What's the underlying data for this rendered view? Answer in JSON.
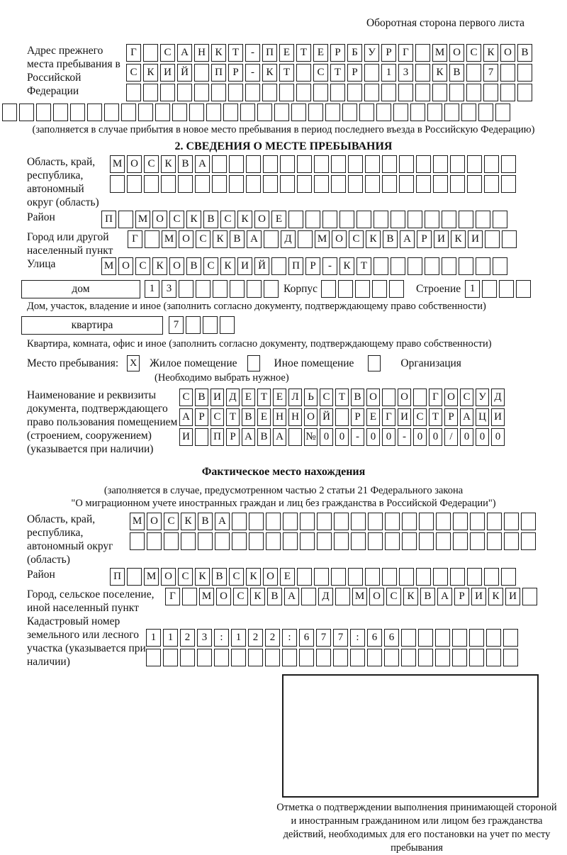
{
  "page": {
    "header_note": "Оборотная сторона первого листа"
  },
  "prev_address": {
    "label": "Адрес прежнего места пребывания в Российской Федерации",
    "rows": [
      {
        "text": "Г САНКТ-ПЕТЕРБУРГ МОСКОВ",
        "len": 24
      },
      {
        "text": "СКИЙ ПР-КТ СТР 13 КВ 7",
        "len": 24
      },
      {
        "text": "",
        "len": 24
      },
      {
        "text": "",
        "len": 30
      }
    ],
    "caption": "(заполняется в случае прибытия в новое место пребывания в период последнего въезда в Российскую Федерацию)"
  },
  "section2": {
    "title": "2. СВЕДЕНИЯ О МЕСТЕ ПРЕБЫВАНИЯ",
    "region": {
      "label": "Область, край, республика, автономный округ (область)",
      "rows": [
        {
          "text": "МОСКВА",
          "len": 24
        },
        {
          "text": "",
          "len": 24
        }
      ]
    },
    "district": {
      "label": "Район",
      "row": {
        "text": "П МОСКВСКОЕ",
        "len": 24
      }
    },
    "city": {
      "label": "Город или другой населенный пункт",
      "row": {
        "text": "Г МОСКВА Д МОСКВАРИКИ",
        "len": 23
      }
    },
    "street": {
      "label": "Улица",
      "row": {
        "text": "МОСКОВСКИЙ ПР-КТ",
        "len": 24
      }
    },
    "house": {
      "box_label": "дом",
      "row": {
        "text": "13",
        "len": 8
      }
    },
    "korpus": {
      "label": "Корпус",
      "row": {
        "text": "",
        "len": 5
      }
    },
    "stroenie": {
      "label": "Строение",
      "row": {
        "text": "1",
        "len": 4
      }
    },
    "house_caption": "Дом, участок, владение и иное (заполнить согласно документу, подтверждающему право собственности)",
    "apartment": {
      "box_label": "квартира",
      "row": {
        "text": "7",
        "len": 4
      }
    },
    "apartment_caption": "Квартира, комната, офис и иное (заполнить согласно документу, подтверждающему право собственности)",
    "stay_type": {
      "label": "Место пребывания:",
      "options": [
        {
          "label": "Жилое помещение",
          "checked": {
            "text": "X",
            "len": 1
          }
        },
        {
          "label": "Иное помещение",
          "checked": {
            "text": "",
            "len": 1
          }
        },
        {
          "label": "Организация",
          "checked": {
            "text": "",
            "len": 1
          }
        }
      ],
      "note": "(Необходимо выбрать нужное)"
    },
    "document": {
      "label": "Наименование и реквизиты документа, подтверждающего право пользования помещением (строением, сооружением) (указывается при наличии)",
      "rows": [
        {
          "text": "СВИДЕТЕЛЬСТВО О ГОСУД",
          "len": 21
        },
        {
          "text": "АРСТВЕННОЙ РЕГИСТРАЦИ",
          "len": 21
        },
        {
          "text": "И ПРАВА №00-00-00/000",
          "len": 21
        }
      ]
    }
  },
  "actual_location": {
    "title": "Фактическое место нахождения",
    "caption_line1": "(заполняется в случае, предусмотренном частью 2 статьи 21 Федерального закона",
    "caption_line2": "\"О миграционном учете иностранных граждан и лиц без гражданства в Российской Федерации\")",
    "region": {
      "label": "Область, край, республика, автономный округ (область)",
      "rows": [
        {
          "text": "МОСКВА",
          "len": 24
        },
        {
          "text": "",
          "len": 24
        }
      ]
    },
    "district": {
      "label": "Район",
      "row": {
        "text": "П МОСКВСКОЕ",
        "len": 24
      }
    },
    "city": {
      "label": "Город, сельское поселение, иной населенный пункт",
      "row": {
        "text": "Г МОСКВА Д МОСКВАРИКИ",
        "len": 22
      }
    },
    "cadastre": {
      "label": "Кадастровый номер земельного или лесного участка (указывается при наличии)",
      "rows": [
        {
          "text": "1123:122:677:66",
          "len": 22
        },
        {
          "text": "",
          "len": 22
        }
      ]
    }
  },
  "stamp": {
    "caption": "Отметка о подтверждении выполнения принимающей стороной и иностранным гражданином или лицом без гражданства действий, необходимых для его постановки на учет по месту пребывания"
  }
}
